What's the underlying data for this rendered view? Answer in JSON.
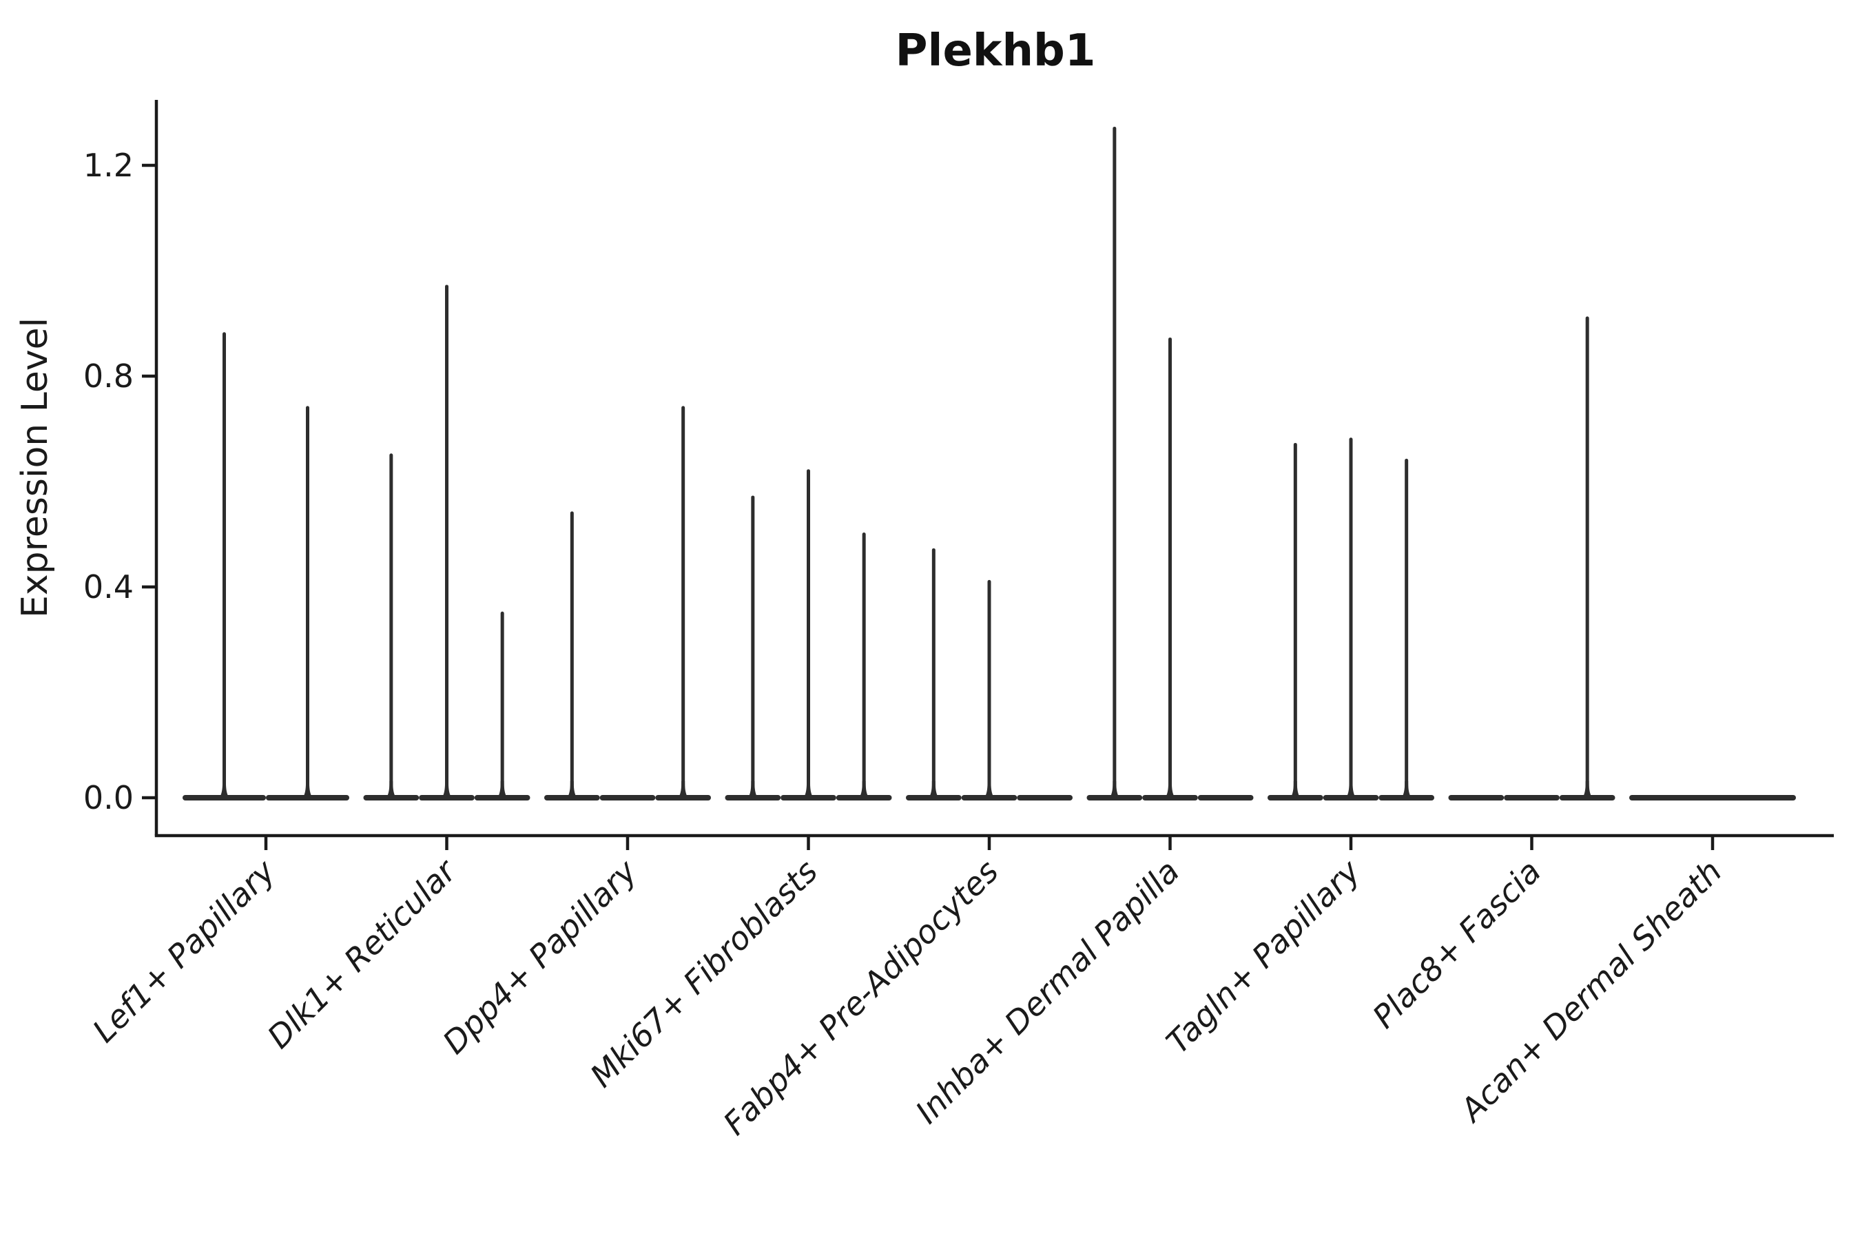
{
  "chart_data": {
    "type": "violin",
    "title": "Plekhb1",
    "ylabel": "Expression Level",
    "xlabel": "",
    "legend": "none",
    "grid": false,
    "background": "#ffffff",
    "ink_color": "#1a1a1a",
    "violin_color": "#2d2d2d",
    "y_ticks": [
      "0.0",
      "0.4",
      "0.8",
      "1.2"
    ],
    "y_tick_values": [
      0.0,
      0.4,
      0.8,
      1.2
    ],
    "ylim": [
      -0.07,
      1.33
    ],
    "categories": [
      {
        "label": "Lef1+ Papillary",
        "violins": [
          0.88,
          0.74
        ]
      },
      {
        "label": "Dlk1+ Reticular",
        "violins": [
          0.65,
          0.97,
          0.35
        ]
      },
      {
        "label": "Dpp4+ Papillary",
        "violins": [
          0.54,
          0.0,
          0.74
        ]
      },
      {
        "label": "Mki67+ Fibroblasts",
        "violins": [
          0.57,
          0.62,
          0.5
        ]
      },
      {
        "label": "Fabp4+ Pre-Adipocytes",
        "violins": [
          0.47,
          0.41,
          0.0
        ]
      },
      {
        "label": "Inhba+ Dermal Papilla",
        "violins": [
          1.27,
          0.87,
          0.0
        ]
      },
      {
        "label": "Tagln+ Papillary",
        "violins": [
          0.67,
          0.68,
          0.64
        ]
      },
      {
        "label": "Plac8+ Fascia",
        "violins": [
          0.0,
          0.0,
          0.91
        ]
      },
      {
        "label": "Acan+ Dermal Sheath",
        "violins": [
          0.0
        ]
      }
    ]
  }
}
